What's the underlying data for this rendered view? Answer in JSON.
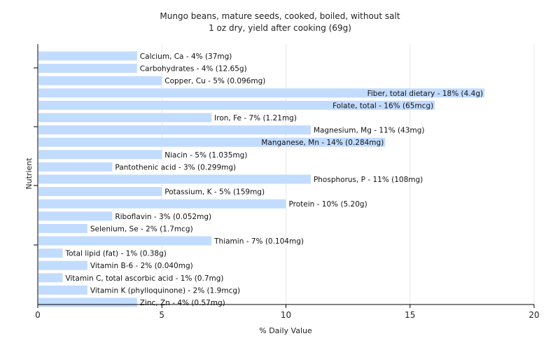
{
  "chart_data": {
    "type": "bar",
    "orientation": "horizontal",
    "title": "Mungo beans, mature seeds, cooked, boiled, without salt",
    "subtitle": "1 oz dry, yield after cooking (69g)",
    "xlabel": "% Daily Value",
    "ylabel": "Nutrient",
    "xlim": [
      0,
      20
    ],
    "xticks": [
      "0",
      "5",
      "10",
      "15",
      "20"
    ],
    "grid": "vertical",
    "bar_color": "#c2dcff",
    "categories": [
      "Calcium, Ca",
      "Carbohydrates",
      "Copper, Cu",
      "Fiber, total dietary",
      "Folate, total",
      "Iron, Fe",
      "Magnesium, Mg",
      "Manganese, Mn",
      "Niacin",
      "Pantothenic acid",
      "Phosphorus, P",
      "Potassium, K",
      "Protein",
      "Riboflavin",
      "Selenium, Se",
      "Thiamin",
      "Total lipid (fat)",
      "Vitamin B-6",
      "Vitamin C, total ascorbic acid",
      "Vitamin K (phylloquinone)",
      "Zinc, Zn"
    ],
    "values": [
      4,
      4,
      5,
      18,
      16,
      7,
      11,
      14,
      5,
      3,
      11,
      5,
      10,
      3,
      2,
      7,
      1,
      2,
      1,
      2,
      4
    ],
    "labels": [
      "Calcium, Ca - 4% (37mg)",
      "Carbohydrates - 4% (12.65g)",
      "Copper, Cu - 5% (0.096mg)",
      "Fiber, total dietary - 18% (4.4g)",
      "Folate, total - 16% (65mcg)",
      "Iron, Fe - 7% (1.21mg)",
      "Magnesium, Mg - 11% (43mg)",
      "Manganese, Mn - 14% (0.284mg)",
      "Niacin - 5% (1.035mg)",
      "Pantothenic acid - 3% (0.299mg)",
      "Phosphorus, P - 11% (108mg)",
      "Potassium, K - 5% (159mg)",
      "Protein - 10% (5.20g)",
      "Riboflavin - 3% (0.052mg)",
      "Selenium, Se - 2% (1.7mcg)",
      "Thiamin - 7% (0.104mg)",
      "Total lipid (fat) - 1% (0.38g)",
      "Vitamin B-6 - 2% (0.040mg)",
      "Vitamin C, total ascorbic acid - 1% (0.7mg)",
      "Vitamin K (phylloquinone) - 2% (1.9mcg)",
      "Zinc, Zn - 4% (0.57mg)"
    ]
  }
}
